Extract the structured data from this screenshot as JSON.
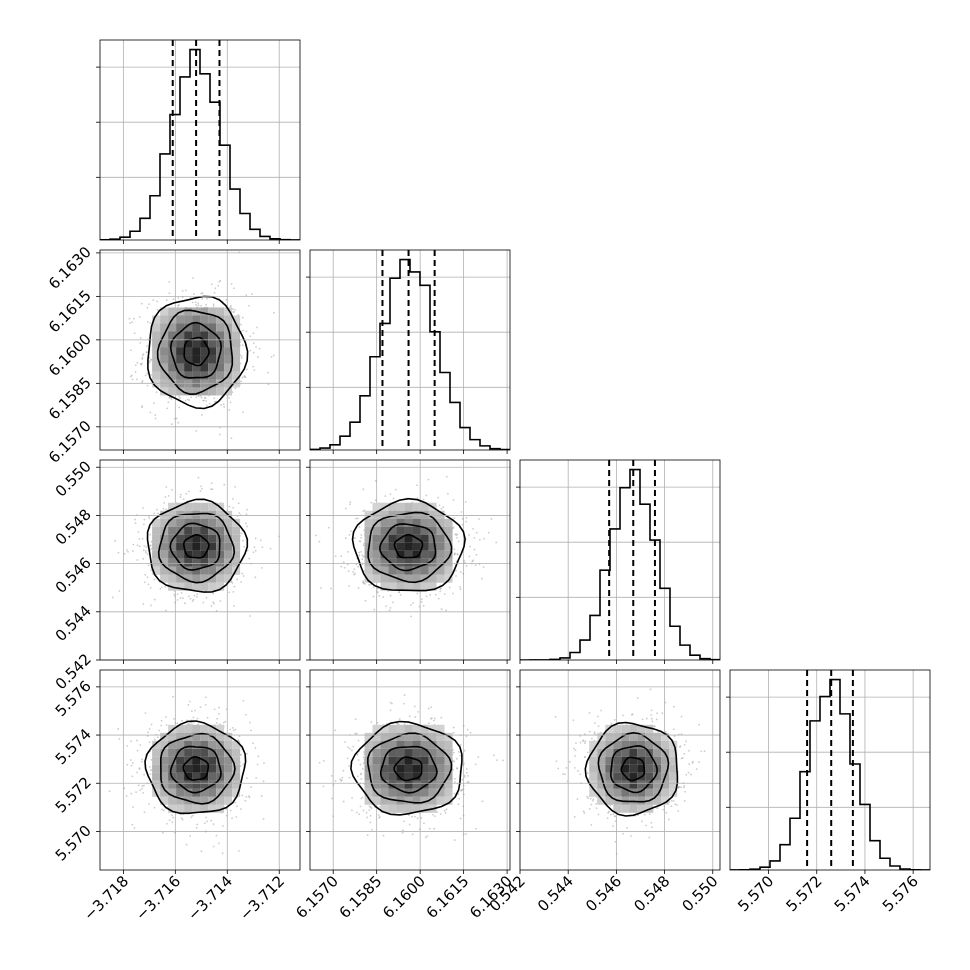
{
  "chart_data": {
    "type": "corner",
    "parameters": [
      {
        "mean": -3.7152,
        "sd": 0.00095,
        "quantiles": [
          -3.7161,
          -3.7152,
          -3.7143
        ],
        "range": [
          -3.7189,
          -3.7112
        ],
        "ticks": [
          -3.718,
          -3.716,
          -3.714,
          -3.712
        ],
        "tick_labels": [
          "−3.718",
          "−3.716",
          "−3.714",
          "−3.712"
        ]
      },
      {
        "mean": 6.1596,
        "sd": 0.00095,
        "quantiles": [
          6.1587,
          6.1596,
          6.1605
        ],
        "range": [
          6.1562,
          6.1631
        ],
        "ticks": [
          6.157,
          6.1585,
          6.16,
          6.1615,
          6.163
        ],
        "tick_labels": [
          "6.1570",
          "6.1585",
          "6.1600",
          "6.1615",
          "6.1630"
        ]
      },
      {
        "mean": 0.5467,
        "sd": 0.00095,
        "quantiles": [
          0.5457,
          0.5467,
          0.5476
        ],
        "range": [
          0.542,
          0.5503
        ],
        "ticks": [
          0.542,
          0.544,
          0.546,
          0.548,
          0.55
        ],
        "tick_labels": [
          "0.542",
          "0.544",
          "0.546",
          "0.548",
          "0.550"
        ]
      },
      {
        "mean": 5.5726,
        "sd": 0.00095,
        "quantiles": [
          5.5716,
          5.5726,
          5.5735
        ],
        "range": [
          5.5684,
          5.5767
        ],
        "ticks": [
          5.57,
          5.572,
          5.574,
          5.576
        ],
        "tick_labels": [
          "5.570",
          "5.572",
          "5.574",
          "5.576"
        ]
      }
    ],
    "histogram_bins": 20,
    "grid": true,
    "contour_levels": 4,
    "colors": {
      "line": "#000000",
      "grid": "#b0b0b0",
      "points": "#9a9a9a"
    }
  }
}
